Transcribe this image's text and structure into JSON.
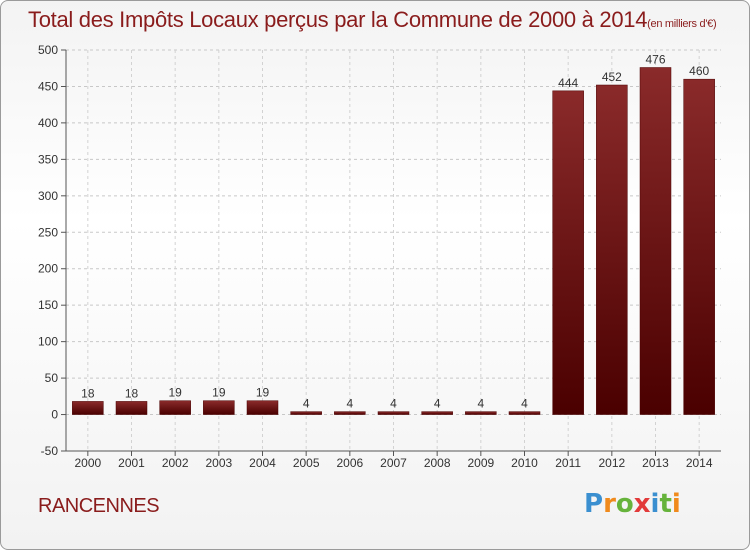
{
  "header": {
    "title": "Total des Impôts Locaux perçus par la Commune de 2000 à 2014",
    "unit": "(en milliers d'€)"
  },
  "commune": "RANCENNES",
  "logo": {
    "letters": [
      "P",
      "r",
      "o",
      "x",
      "i",
      "t",
      "i"
    ],
    "colors": [
      "#3a8fd0",
      "#f08a1c",
      "#66b33b",
      "#e23a3a",
      "#3a8fd0",
      "#66b33b",
      "#f08a1c"
    ]
  },
  "chart_data": {
    "type": "bar",
    "categories": [
      "2000",
      "2001",
      "2002",
      "2003",
      "2004",
      "2005",
      "2006",
      "2007",
      "2008",
      "2009",
      "2010",
      "2011",
      "2012",
      "2013",
      "2014"
    ],
    "values": [
      18,
      18,
      19,
      19,
      19,
      4,
      4,
      4,
      4,
      4,
      4,
      444,
      452,
      476,
      460
    ],
    "title": "Total des Impôts Locaux perçus par la Commune de 2000 à 2014",
    "ylim": [
      -50,
      500
    ],
    "yticks": [
      -50,
      0,
      50,
      100,
      150,
      200,
      250,
      300,
      350,
      400,
      450,
      500
    ],
    "grid": true,
    "bar_color": "#6e1414"
  }
}
